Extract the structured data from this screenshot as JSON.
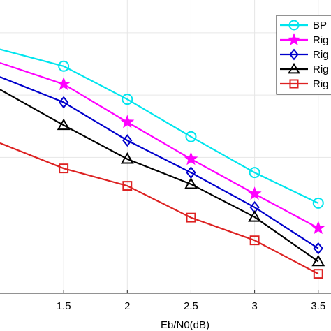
{
  "chart_data": {
    "type": "line",
    "xlabel": "Eb/N0(dB)",
    "ylabel": "",
    "xlim": [
      1.0,
      3.6
    ],
    "x_ticks": [
      1.5,
      2,
      2.5,
      3,
      3.5
    ],
    "x_tick_labels": [
      "1.5",
      "2",
      "2.5",
      "3",
      "3.5"
    ],
    "y_scale": "log",
    "ylim": [
      0.0001,
      0.05
    ],
    "y_gridlines": [
      0.025,
      0.00667,
      0.00178
    ],
    "grid": true,
    "legend_position": "top-right",
    "series": [
      {
        "name": "BP",
        "color": "#00e5ee",
        "marker": "circle",
        "x": [
          1.0,
          1.5,
          2.0,
          2.5,
          3.0,
          3.5
        ],
        "y": [
          0.0176,
          0.0123,
          0.0061,
          0.00276,
          0.00129,
          0.000676
        ]
      },
      {
        "name": "Rig",
        "color": "#ff00ff",
        "marker": "star",
        "x": [
          1.0,
          1.5,
          2.0,
          2.5,
          3.0,
          3.5
        ],
        "y": [
          0.0132,
          0.0084,
          0.00376,
          0.00172,
          0.000822,
          0.000398
        ]
      },
      {
        "name": "Rig",
        "color": "#0000cc",
        "marker": "diamond",
        "x": [
          1.0,
          1.5,
          2.0,
          2.5,
          3.0,
          3.5
        ],
        "y": [
          0.0098,
          0.00572,
          0.00255,
          0.00129,
          0.000618,
          0.000259
        ]
      },
      {
        "name": "Rig",
        "color": "#000000",
        "marker": "triangle",
        "x": [
          1.0,
          1.5,
          2.0,
          2.5,
          3.0,
          3.5
        ],
        "y": [
          0.0075,
          0.00352,
          0.00172,
          0.00101,
          0.000503,
          0.000196
        ]
      },
      {
        "name": "Rig",
        "color": "#dd2222",
        "marker": "square",
        "x": [
          1.0,
          1.5,
          2.0,
          2.5,
          3.0,
          3.5
        ],
        "y": [
          0.00241,
          0.00141,
          0.000975,
          0.000497,
          0.000307,
          0.000151
        ]
      }
    ]
  }
}
